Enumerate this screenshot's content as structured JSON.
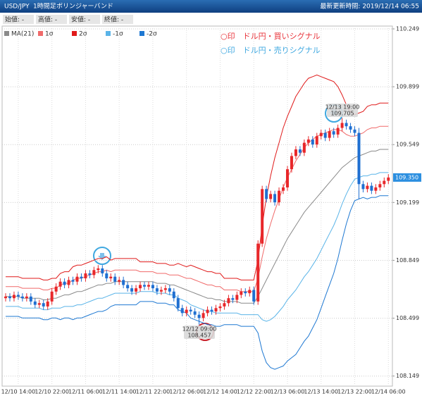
{
  "header": {
    "symbol": "USD/JPY",
    "timeframe": "1時間足",
    "indicator": "ボリンジャーバンド",
    "updated": "最新更新時間: 2019/12/14 06:55"
  },
  "ohlc_labels": [
    "始値: -",
    "高値: -",
    "安値: -",
    "終値: -"
  ],
  "signals_legend": [
    {
      "text": "○印　ドル円・買いシグナル",
      "color": "#e8333a"
    },
    {
      "text": "○印　ドル円・売りシグナル",
      "color": "#3fa8e0"
    }
  ],
  "chart_data": {
    "type": "candlestick",
    "ylim": [
      108.088,
      110.266
    ],
    "yticks": [
      108.149,
      108.499,
      108.849,
      109.199,
      109.549,
      109.899,
      110.249
    ],
    "grid": true,
    "up_color": "#e8272a",
    "down_color": "#1f6fd1",
    "last_price": {
      "value": 109.35,
      "label": "109.350"
    },
    "categories": [
      null,
      null,
      null,
      "12/10 14:00",
      null,
      null,
      null,
      null,
      null,
      null,
      null,
      "12/10 22:00",
      null,
      null,
      null,
      null,
      null,
      null,
      null,
      "12/11 06:00",
      null,
      null,
      null,
      null,
      null,
      null,
      null,
      "12/11 14:00",
      null,
      null,
      null,
      null,
      null,
      null,
      null,
      "12/11 22:00",
      null,
      null,
      null,
      null,
      null,
      null,
      null,
      "12/12 06:00",
      null,
      null,
      null,
      null,
      null,
      null,
      null,
      "12/12 14:00",
      null,
      null,
      null,
      null,
      null,
      null,
      null,
      "12/12 22:00",
      null,
      null,
      null,
      null,
      null,
      null,
      null,
      "12/13 06:00",
      null,
      null,
      null,
      null,
      null,
      null,
      null,
      "12/13 14:00",
      null,
      null,
      null,
      null,
      null,
      null,
      null,
      "12/13 22:00",
      null,
      null,
      null,
      null,
      null,
      null,
      null,
      "12/14 06:00"
    ],
    "candles": {
      "open": [
        108.62,
        108.63,
        108.62,
        108.64,
        108.63,
        108.62,
        108.63,
        108.6,
        108.58,
        108.59,
        108.57,
        108.6,
        108.66,
        108.69,
        108.72,
        108.7,
        108.73,
        108.72,
        108.75,
        108.74,
        108.77,
        108.76,
        108.79,
        108.8,
        108.77,
        108.74,
        108.75,
        108.72,
        108.73,
        108.7,
        108.68,
        108.66,
        108.68,
        108.7,
        108.69,
        108.7,
        108.68,
        108.66,
        108.67,
        108.68,
        108.66,
        108.62,
        108.56,
        108.53,
        108.55,
        108.54,
        108.52,
        108.5,
        108.53,
        108.55,
        108.54,
        108.56,
        108.57,
        108.59,
        108.62,
        108.61,
        108.64,
        108.66,
        108.65,
        108.67,
        108.6,
        108.95,
        109.28,
        109.22,
        109.25,
        109.2,
        109.27,
        109.29,
        109.4,
        109.48,
        109.52,
        109.5,
        109.56,
        109.58,
        109.55,
        109.6,
        109.62,
        109.59,
        109.63,
        109.61,
        109.65,
        109.68,
        109.66,
        109.64,
        109.62,
        109.31,
        109.28,
        109.3,
        109.27,
        109.29,
        109.31,
        109.33
      ],
      "high": [
        108.65,
        108.65,
        108.66,
        108.66,
        108.65,
        108.65,
        108.65,
        108.62,
        108.61,
        108.61,
        108.62,
        108.68,
        108.71,
        108.74,
        108.74,
        108.75,
        108.75,
        108.77,
        108.77,
        108.79,
        108.79,
        108.81,
        108.82,
        108.82,
        108.79,
        108.77,
        108.77,
        108.75,
        108.75,
        108.72,
        108.7,
        108.7,
        108.72,
        108.72,
        108.72,
        108.72,
        108.7,
        108.69,
        108.7,
        108.7,
        108.68,
        108.64,
        108.58,
        108.57,
        108.57,
        108.56,
        108.54,
        108.55,
        108.57,
        108.57,
        108.58,
        108.59,
        108.61,
        108.64,
        108.64,
        108.66,
        108.68,
        108.68,
        108.69,
        108.69,
        108.97,
        109.3,
        109.3,
        109.27,
        109.27,
        109.29,
        109.31,
        109.42,
        109.5,
        109.54,
        109.54,
        109.58,
        109.6,
        109.6,
        109.62,
        109.64,
        109.64,
        109.65,
        109.65,
        109.67,
        109.71,
        109.7,
        109.68,
        109.66,
        109.65,
        109.33,
        109.32,
        109.32,
        109.31,
        109.33,
        109.35,
        109.37
      ],
      "low": [
        108.6,
        108.6,
        108.6,
        108.61,
        108.6,
        108.6,
        108.58,
        108.56,
        108.56,
        108.55,
        108.55,
        108.58,
        108.64,
        108.67,
        108.68,
        108.68,
        108.7,
        108.7,
        108.72,
        108.72,
        108.74,
        108.74,
        108.77,
        108.75,
        108.72,
        108.72,
        108.7,
        108.7,
        108.68,
        108.66,
        108.64,
        108.64,
        108.66,
        108.67,
        108.67,
        108.66,
        108.64,
        108.64,
        108.65,
        108.64,
        108.6,
        108.54,
        108.51,
        108.51,
        108.52,
        108.5,
        108.46,
        108.48,
        108.51,
        108.52,
        108.52,
        108.54,
        108.55,
        108.57,
        108.59,
        108.59,
        108.62,
        108.63,
        108.63,
        108.58,
        108.58,
        108.93,
        109.2,
        109.2,
        109.18,
        109.18,
        109.25,
        109.27,
        109.38,
        109.46,
        109.48,
        109.48,
        109.54,
        109.53,
        109.53,
        109.58,
        109.57,
        109.57,
        109.59,
        109.59,
        109.63,
        109.64,
        109.62,
        109.6,
        109.22,
        109.26,
        109.26,
        109.25,
        109.25,
        109.27,
        109.29,
        109.31
      ],
      "close": [
        108.63,
        108.62,
        108.64,
        108.63,
        108.62,
        108.63,
        108.6,
        108.58,
        108.59,
        108.57,
        108.6,
        108.66,
        108.69,
        108.72,
        108.7,
        108.73,
        108.72,
        108.75,
        108.74,
        108.77,
        108.76,
        108.79,
        108.8,
        108.77,
        108.74,
        108.75,
        108.72,
        108.73,
        108.7,
        108.68,
        108.66,
        108.68,
        108.7,
        108.69,
        108.7,
        108.68,
        108.66,
        108.67,
        108.68,
        108.66,
        108.62,
        108.56,
        108.53,
        108.55,
        108.54,
        108.52,
        108.5,
        108.53,
        108.55,
        108.54,
        108.56,
        108.57,
        108.59,
        108.62,
        108.61,
        108.64,
        108.66,
        108.65,
        108.67,
        108.6,
        108.95,
        109.28,
        109.22,
        109.25,
        109.2,
        109.27,
        109.29,
        109.4,
        109.48,
        109.52,
        109.5,
        109.56,
        109.58,
        109.55,
        109.6,
        109.62,
        109.59,
        109.63,
        109.61,
        109.65,
        109.68,
        109.66,
        109.64,
        109.62,
        109.31,
        109.28,
        109.3,
        109.27,
        109.29,
        109.31,
        109.33,
        109.35
      ]
    },
    "series": [
      {
        "name": "MA(21)",
        "color": "#8a8a8a",
        "values": [
          108.63,
          108.63,
          108.63,
          108.63,
          108.62,
          108.62,
          108.62,
          108.62,
          108.62,
          108.61,
          108.61,
          108.62,
          108.62,
          108.63,
          108.64,
          108.64,
          108.65,
          108.66,
          108.66,
          108.67,
          108.68,
          108.69,
          108.7,
          108.7,
          108.71,
          108.71,
          108.72,
          108.72,
          108.72,
          108.72,
          108.72,
          108.72,
          108.72,
          108.72,
          108.72,
          108.72,
          108.71,
          108.71,
          108.71,
          108.7,
          108.7,
          108.69,
          108.68,
          108.67,
          108.66,
          108.65,
          108.64,
          108.63,
          108.62,
          108.62,
          108.61,
          108.61,
          108.6,
          108.6,
          108.6,
          108.6,
          108.59,
          108.59,
          108.59,
          108.59,
          108.63,
          108.68,
          108.73,
          108.78,
          108.83,
          108.88,
          108.93,
          108.98,
          109.02,
          109.06,
          109.1,
          109.14,
          109.17,
          109.2,
          109.23,
          109.26,
          109.29,
          109.32,
          109.35,
          109.38,
          109.41,
          109.43,
          109.45,
          109.47,
          109.48,
          109.49,
          109.5,
          109.51,
          109.51,
          109.52,
          109.52,
          109.52
        ]
      },
      {
        "name": "1σ",
        "color": "#f06a6a",
        "values": [
          108.69,
          108.69,
          108.69,
          108.69,
          108.68,
          108.68,
          108.68,
          108.68,
          108.68,
          108.67,
          108.67,
          108.68,
          108.68,
          108.7,
          108.71,
          108.71,
          108.73,
          108.74,
          108.74,
          108.75,
          108.76,
          108.77,
          108.78,
          108.78,
          108.79,
          108.78,
          108.79,
          108.79,
          108.79,
          108.79,
          108.79,
          108.79,
          108.78,
          108.78,
          108.78,
          108.78,
          108.77,
          108.77,
          108.77,
          108.76,
          108.76,
          108.76,
          108.75,
          108.74,
          108.74,
          108.73,
          108.72,
          108.71,
          108.7,
          108.7,
          108.69,
          108.69,
          108.67,
          108.67,
          108.67,
          108.67,
          108.66,
          108.66,
          108.66,
          108.66,
          108.74,
          108.87,
          108.98,
          109.07,
          109.15,
          109.22,
          109.29,
          109.35,
          109.4,
          109.45,
          109.49,
          109.53,
          109.56,
          109.58,
          109.6,
          109.61,
          109.62,
          109.63,
          109.64,
          109.64,
          109.63,
          109.61,
          109.6,
          109.6,
          109.61,
          109.62,
          109.64,
          109.65,
          109.65,
          109.66,
          109.66,
          109.66
        ]
      },
      {
        "name": "2σ",
        "color": "#e01a1a",
        "values": [
          108.75,
          108.75,
          108.75,
          108.75,
          108.74,
          108.74,
          108.74,
          108.74,
          108.74,
          108.73,
          108.73,
          108.74,
          108.74,
          108.77,
          108.78,
          108.78,
          108.81,
          108.82,
          108.82,
          108.83,
          108.84,
          108.85,
          108.86,
          108.86,
          108.87,
          108.85,
          108.86,
          108.86,
          108.86,
          108.86,
          108.86,
          108.86,
          108.84,
          108.84,
          108.84,
          108.84,
          108.83,
          108.83,
          108.83,
          108.82,
          108.82,
          108.83,
          108.82,
          108.81,
          108.82,
          108.81,
          108.8,
          108.79,
          108.78,
          108.78,
          108.77,
          108.77,
          108.74,
          108.74,
          108.74,
          108.74,
          108.73,
          108.73,
          108.73,
          108.73,
          108.85,
          109.06,
          109.23,
          109.36,
          109.47,
          109.56,
          109.65,
          109.72,
          109.78,
          109.84,
          109.88,
          109.92,
          109.95,
          109.96,
          109.97,
          109.96,
          109.95,
          109.94,
          109.93,
          109.9,
          109.85,
          109.79,
          109.75,
          109.73,
          109.74,
          109.75,
          109.78,
          109.79,
          109.79,
          109.8,
          109.8,
          109.8
        ]
      },
      {
        "name": "-1σ",
        "color": "#5ab4e8",
        "values": [
          108.57,
          108.57,
          108.57,
          108.57,
          108.56,
          108.56,
          108.56,
          108.56,
          108.56,
          108.55,
          108.55,
          108.56,
          108.56,
          108.56,
          108.57,
          108.57,
          108.57,
          108.58,
          108.58,
          108.59,
          108.6,
          108.61,
          108.62,
          108.62,
          108.63,
          108.64,
          108.65,
          108.65,
          108.65,
          108.65,
          108.65,
          108.65,
          108.66,
          108.66,
          108.66,
          108.66,
          108.65,
          108.65,
          108.65,
          108.64,
          108.64,
          108.62,
          108.61,
          108.6,
          108.58,
          108.57,
          108.56,
          108.55,
          108.54,
          108.54,
          108.53,
          108.53,
          108.53,
          108.53,
          108.53,
          108.53,
          108.52,
          108.52,
          108.52,
          108.52,
          108.52,
          108.49,
          108.48,
          108.49,
          108.51,
          108.54,
          108.57,
          108.61,
          108.64,
          108.67,
          108.71,
          108.75,
          108.78,
          108.82,
          108.86,
          108.91,
          108.96,
          109.01,
          109.06,
          109.12,
          109.19,
          109.25,
          109.3,
          109.34,
          109.35,
          109.36,
          109.36,
          109.37,
          109.37,
          109.38,
          109.38,
          109.38
        ]
      },
      {
        "name": "-2σ",
        "color": "#1e78d2",
        "values": [
          108.51,
          108.51,
          108.51,
          108.51,
          108.5,
          108.5,
          108.5,
          108.5,
          108.5,
          108.49,
          108.49,
          108.5,
          108.5,
          108.49,
          108.5,
          108.5,
          108.49,
          108.5,
          108.5,
          108.51,
          108.52,
          108.53,
          108.54,
          108.54,
          108.55,
          108.57,
          108.58,
          108.58,
          108.58,
          108.58,
          108.58,
          108.58,
          108.6,
          108.6,
          108.6,
          108.6,
          108.59,
          108.59,
          108.59,
          108.58,
          108.58,
          108.55,
          108.54,
          108.53,
          108.5,
          108.49,
          108.48,
          108.47,
          108.46,
          108.46,
          108.45,
          108.45,
          108.46,
          108.46,
          108.46,
          108.46,
          108.45,
          108.45,
          108.45,
          108.45,
          108.41,
          108.3,
          108.23,
          108.2,
          108.19,
          108.2,
          108.21,
          108.24,
          108.26,
          108.28,
          108.32,
          108.36,
          108.39,
          108.44,
          108.49,
          108.56,
          108.63,
          108.7,
          108.77,
          108.86,
          108.97,
          109.07,
          109.15,
          109.21,
          109.22,
          109.23,
          109.22,
          109.23,
          109.23,
          109.24,
          109.24,
          109.24
        ]
      }
    ],
    "annotations": [
      {
        "time": "12/12 09:00",
        "value": 108.457
      },
      {
        "time": "12/13 19:00",
        "value": 109.705
      }
    ]
  }
}
